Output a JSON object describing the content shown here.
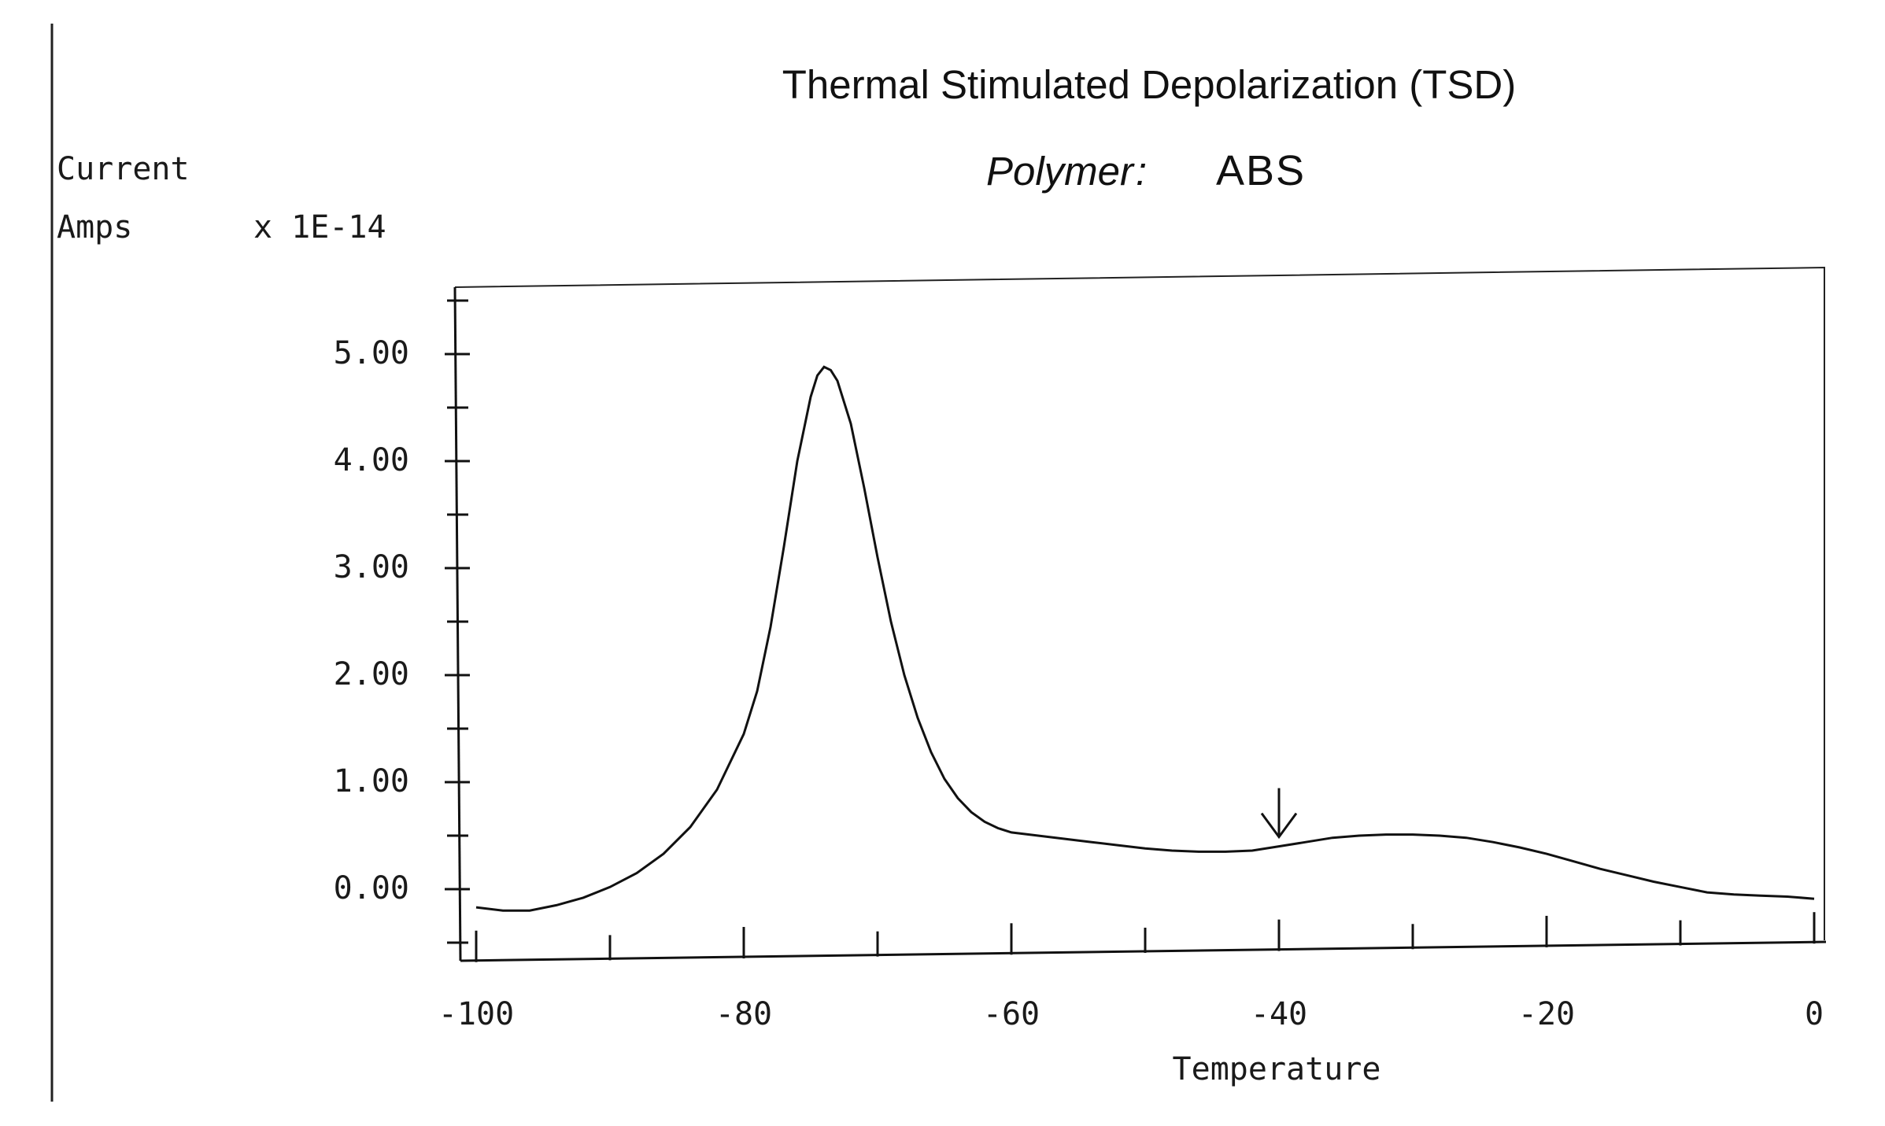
{
  "chart_data": {
    "type": "line",
    "title": "Thermal Stimulated Depolarization (TSD)",
    "subtitle_label": "Polymer",
    "subtitle_value": "ABS",
    "ylabel_line1": "Current",
    "ylabel_line2": "Amps",
    "yscale_note": "x 1E-14",
    "xlabel": "Temperature",
    "xlim": [
      -100,
      0
    ],
    "ylim": [
      -0.7,
      5.9
    ],
    "yticks": [
      0,
      1,
      2,
      3,
      4,
      5
    ],
    "ytick_labels": [
      "0.00",
      "1.00",
      "2.00",
      "3.00",
      "4.00",
      "5.00"
    ],
    "xticks": [
      -100,
      -80,
      -60,
      -40,
      -20,
      0
    ],
    "xtick_labels": [
      "-100",
      "-80",
      "-60",
      "-40",
      "-20",
      "0"
    ],
    "grid": false,
    "annotations": [
      {
        "type": "arrow-down",
        "x": -40,
        "y": 0.4
      }
    ],
    "series": [
      {
        "x": [
          -100,
          -98,
          -96,
          -94,
          -92,
          -90,
          -88,
          -86,
          -84,
          -82,
          -80,
          -79,
          -78,
          -77,
          -76,
          -75,
          -74.5,
          -74,
          -73.5,
          -73,
          -72,
          -71,
          -70,
          -69,
          -68,
          -67,
          -66,
          -65,
          -64,
          -63,
          -62,
          -61,
          -60,
          -58,
          -56,
          -54,
          -52,
          -50,
          -48,
          -46,
          -44,
          -42,
          -40,
          -38,
          -36,
          -34,
          -32,
          -30,
          -28,
          -26,
          -24,
          -22,
          -20,
          -18,
          -16,
          -14,
          -12,
          -10,
          -8,
          -6,
          -4,
          -2,
          0
        ],
        "values": [
          -0.17,
          -0.2,
          -0.2,
          -0.15,
          -0.08,
          0.02,
          0.15,
          0.33,
          0.58,
          0.93,
          1.45,
          1.85,
          2.45,
          3.2,
          4.0,
          4.6,
          4.8,
          4.88,
          4.85,
          4.75,
          4.35,
          3.75,
          3.1,
          2.5,
          2.0,
          1.6,
          1.28,
          1.03,
          0.85,
          0.72,
          0.63,
          0.57,
          0.53,
          0.5,
          0.47,
          0.44,
          0.41,
          0.38,
          0.36,
          0.35,
          0.35,
          0.36,
          0.4,
          0.44,
          0.48,
          0.5,
          0.51,
          0.51,
          0.5,
          0.48,
          0.44,
          0.39,
          0.33,
          0.26,
          0.19,
          0.13,
          0.07,
          0.02,
          -0.03,
          -0.05,
          -0.06,
          -0.07,
          -0.09
        ]
      }
    ]
  }
}
